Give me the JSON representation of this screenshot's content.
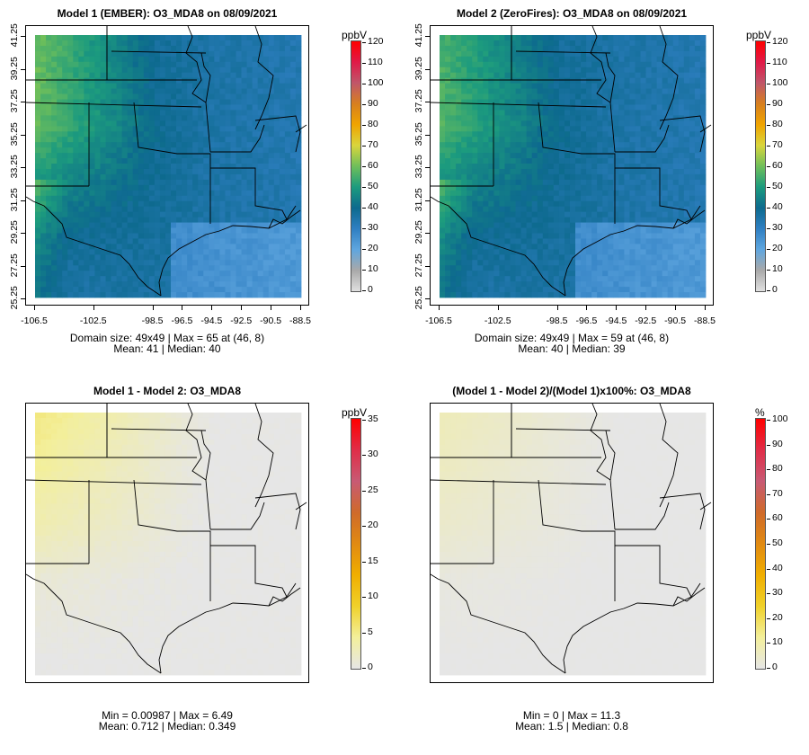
{
  "panels": [
    {
      "title": "Model 1 (EMBER): O3_MDA8 on 08/09/2021",
      "scale": "ppbV",
      "scale_ticks": [
        "120",
        "110",
        "100",
        "90",
        "80",
        "70",
        "60",
        "50",
        "40",
        "30",
        "20",
        "10",
        "0"
      ],
      "y_labels": [
        "41.25",
        "39.25",
        "37.25",
        "35.25",
        "33.25",
        "31.25",
        "29.25",
        "27.25",
        "25.25"
      ],
      "x_labels": [
        "-106.5",
        "-102.5",
        "-98.5",
        "-96.5",
        "-94.5",
        "-92.5",
        "-90.5",
        "-88.5"
      ],
      "stats_line1": "Domain size: 49x49 | Max = 65 at (46, 8)",
      "stats_line2": "Mean: 41 |  Median: 40",
      "field_type": "ozone"
    },
    {
      "title": "Model 2 (ZeroFires): O3_MDA8 on 08/09/2021",
      "scale": "ppbV",
      "scale_ticks": [
        "120",
        "110",
        "100",
        "90",
        "80",
        "70",
        "60",
        "50",
        "40",
        "30",
        "20",
        "10",
        "0"
      ],
      "y_labels": [
        "41.25",
        "39.25",
        "37.25",
        "35.25",
        "33.25",
        "31.25",
        "29.25",
        "27.25",
        "25.25"
      ],
      "x_labels": [
        "-106.5",
        "-102.5",
        "-98.5",
        "-96.5",
        "-94.5",
        "-92.5",
        "-90.5",
        "-88.5"
      ],
      "stats_line1": "Domain size: 49x49 | Max = 59 at (46, 8)",
      "stats_line2": "Mean: 40 |  Median: 39",
      "field_type": "ozone"
    },
    {
      "title": "Model 1 - Model 2: O3_MDA8",
      "scale": "ppbV",
      "scale_ticks": [
        "35",
        "30",
        "25",
        "20",
        "15",
        "10",
        "5",
        "0"
      ],
      "y_labels": [],
      "x_labels": [],
      "stats_line1": "Min = 0.00987 | Max = 6.49",
      "stats_line2": "Mean: 0.712 |  Median: 0.349",
      "field_type": "diff"
    },
    {
      "title": "(Model 1 - Model 2)/(Model 1)x100%: O3_MDA8",
      "scale": "%",
      "scale_ticks": [
        "100",
        "90",
        "80",
        "70",
        "60",
        "50",
        "40",
        "30",
        "20",
        "10",
        "0"
      ],
      "y_labels": [],
      "x_labels": [],
      "stats_line1": "Min = 0 | Max = 11.3",
      "stats_line2": "Mean: 1.5 |  Median: 0.8",
      "field_type": "pct"
    }
  ],
  "colors": {
    "ozone_gradient": [
      "#e0e0e0",
      "#a9a9a9",
      "#5fa6df",
      "#2f7fc2",
      "#0d6a8e",
      "#1c9b7e",
      "#6fbf5a",
      "#d9d53d",
      "#f0a400",
      "#d77f1f",
      "#c0566a",
      "#e01a48",
      "#ff0000"
    ],
    "diff_gradient": [
      "#e6e6e6",
      "#f3ef9b",
      "#f0d12a",
      "#f0ae00",
      "#e18a12",
      "#cf6a2a",
      "#c85a74",
      "#e02d48",
      "#ff0000"
    ]
  }
}
